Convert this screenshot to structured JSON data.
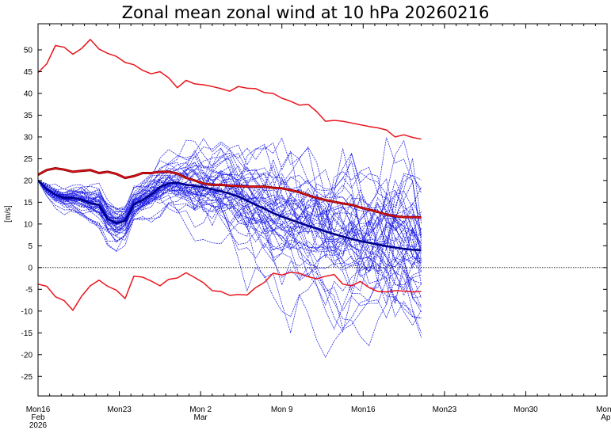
{
  "chart_data": {
    "type": "line",
    "title": "Zonal mean zonal wind at 10 hPa 20260216",
    "xlabel": "",
    "ylabel": "[m/s]",
    "ylim": [
      -29.5,
      56
    ],
    "yticks": [
      -25,
      -20,
      -15,
      -10,
      -5,
      0,
      5,
      10,
      15,
      20,
      25,
      30,
      35,
      40,
      45,
      50
    ],
    "xlim": [
      0,
      49
    ],
    "x_unit": "days since 2026-02-16",
    "x_ticks": [
      {
        "x": 0,
        "label": "Mon16",
        "sub1": "Feb",
        "sub2": "2026"
      },
      {
        "x": 7,
        "label": "Mon23",
        "sub1": "",
        "sub2": ""
      },
      {
        "x": 14,
        "label": "Mon 2",
        "sub1": "Mar",
        "sub2": ""
      },
      {
        "x": 21,
        "label": "Mon 9",
        "sub1": "",
        "sub2": ""
      },
      {
        "x": 28,
        "label": "Mon16",
        "sub1": "",
        "sub2": ""
      },
      {
        "x": 35,
        "label": "Mon23",
        "sub1": "",
        "sub2": ""
      },
      {
        "x": 42,
        "label": "Mon30",
        "sub1": "",
        "sub2": ""
      },
      {
        "x": 49,
        "label": "Mon 6",
        "sub1": "Apr",
        "sub2": ""
      }
    ],
    "x": [
      0,
      0.75,
      1.5,
      2.25,
      3,
      3.75,
      4.5,
      5.25,
      6,
      6.75,
      7.5,
      8.25,
      9,
      9.75,
      10.5,
      11.25,
      12,
      12.75,
      13.5,
      14.25,
      15,
      15.75,
      16.5,
      17.25,
      18,
      18.75,
      19.5,
      20.25,
      21,
      21.75,
      22.5,
      23.25,
      24,
      24.75,
      25.5,
      26.25,
      27,
      27.75,
      28.5,
      29.25,
      30,
      30.75,
      31.5,
      32.25,
      33,
      33.75,
      34.5,
      35.25,
      36,
      36.75,
      37.5,
      38.25,
      39,
      39.75,
      40.5,
      41.25,
      42,
      42.75,
      43.5,
      44.25,
      45
    ],
    "series": [
      {
        "name": "Historical maximum",
        "color": "#e8141c",
        "width": 1.5,
        "values": [
          44.8,
          46.8,
          51,
          50.6,
          49,
          50.3,
          52.4,
          50.2,
          49.2,
          48.5,
          47.1,
          46.6,
          45.3,
          44.5,
          45,
          43.6,
          41.3,
          43,
          42.2,
          42,
          41.6,
          41.1,
          40.5,
          41.6,
          41.2,
          41.1,
          40.2,
          40,
          38.9,
          38.2,
          37.3,
          37.5,
          35.8,
          33.6,
          33.8,
          33.6,
          33.2,
          32.8,
          32.4,
          32.1,
          31.6,
          30,
          30.5,
          29.9,
          29.5,
          29.1,
          28.5,
          28.2,
          28.3,
          28.2,
          28.1,
          28.3,
          28.2,
          28.1,
          28.2,
          28.1,
          28.2,
          28.1,
          28.2,
          28.1,
          28.2
        ]
      },
      {
        "name": "Climatology",
        "color": "#8b0000",
        "width": 3,
        "values": [
          21.3,
          22.4,
          22.8,
          22.5,
          22,
          22.2,
          22.4,
          21.7,
          22,
          21.5,
          20.6,
          21,
          21.7,
          21.7,
          22,
          22,
          21.6,
          20.6,
          20,
          19.3,
          19,
          19,
          18.8,
          18.7,
          18.6,
          18.6,
          18.6,
          18.3,
          18.2,
          17.8,
          17.3,
          16.6,
          16,
          15.5,
          15.1,
          14.7,
          14.4,
          13.8,
          13.3,
          12.8,
          12.2,
          11.8,
          11.6,
          11.6,
          11.5,
          11.6,
          11.5,
          11.6,
          11.5,
          11.6,
          11.5,
          11.6,
          11.5,
          11.6,
          11.5,
          11.6,
          11.5,
          11.6,
          11.5,
          11.6,
          11.5
        ]
      },
      {
        "name": "Climatology (red overlay)",
        "color": "#e8141c",
        "width": 1.2,
        "values": [
          21.3,
          22.4,
          22.8,
          22.5,
          22,
          22.2,
          22.4,
          21.7,
          22,
          21.5,
          20.6,
          21,
          21.7,
          21.7,
          22,
          22,
          21.6,
          20.6,
          20,
          19.3,
          19,
          19,
          18.8,
          18.7,
          18.6,
          18.6,
          18.6,
          18.3,
          18.2,
          17.8,
          17.3,
          16.6,
          16,
          15.5,
          15.1,
          14.7,
          14.4,
          13.8,
          13.3,
          12.8,
          12.2,
          11.8,
          11.6,
          11.6,
          11.5,
          11.6,
          11.5,
          11.6,
          11.5,
          11.6,
          11.5,
          11.6,
          11.5,
          11.6,
          11.5,
          11.6,
          11.5,
          11.6,
          11.5,
          11.6,
          11.5
        ]
      },
      {
        "name": "Historical minimum",
        "color": "#e8141c",
        "width": 1.5,
        "values": [
          -3.8,
          -4.3,
          -6.7,
          -7.6,
          -9.8,
          -6.6,
          -4.2,
          -2.9,
          -4.3,
          -5.2,
          -7.1,
          -2,
          -2.2,
          -3.1,
          -4.2,
          -2.7,
          -2.4,
          -1.2,
          -2.3,
          -3.5,
          -5.3,
          -5.5,
          -6.4,
          -6.2,
          -6.3,
          -4.6,
          -3.4,
          -1.3,
          -1.7,
          -1.1,
          -1.3,
          -2.1,
          -2.6,
          -2,
          -1.6,
          -3.8,
          -4.2,
          -3.2,
          -4.6,
          -5.5,
          -5.6,
          -5.3,
          -5.4,
          -5.6,
          -5.5,
          -5.6,
          -5.4,
          -5.5,
          -5.6,
          -5.5,
          -5.4,
          -5.6,
          -5.5,
          -5.4,
          -5.5,
          -5.6,
          -5.5,
          -5.4,
          -5.5,
          -5.6,
          -5.5
        ]
      }
    ],
    "ensemble_members": 50,
    "ensemble_color": "#1a1ae6",
    "ensemble_length": 45,
    "ensemble_mean_color": "#00008b",
    "ensemble_mean_values": [
      20,
      18,
      16.7,
      16,
      16,
      15.6,
      14.8,
      14.4,
      11.2,
      10.2,
      10.7,
      14.5,
      15.5,
      16.8,
      18.5,
      19.3,
      19.5,
      19,
      18.8,
      18.4,
      18,
      17.5,
      17,
      16.3,
      15.4,
      14.4,
      13.5,
      12.5,
      11.7,
      11,
      10.3,
      9.6,
      9,
      8.3,
      7.7,
      7.1,
      6.6,
      6.1,
      5.7,
      5.3,
      4.9,
      4.6,
      4.3,
      4.1,
      4
    ],
    "zero_line": "dotted"
  }
}
